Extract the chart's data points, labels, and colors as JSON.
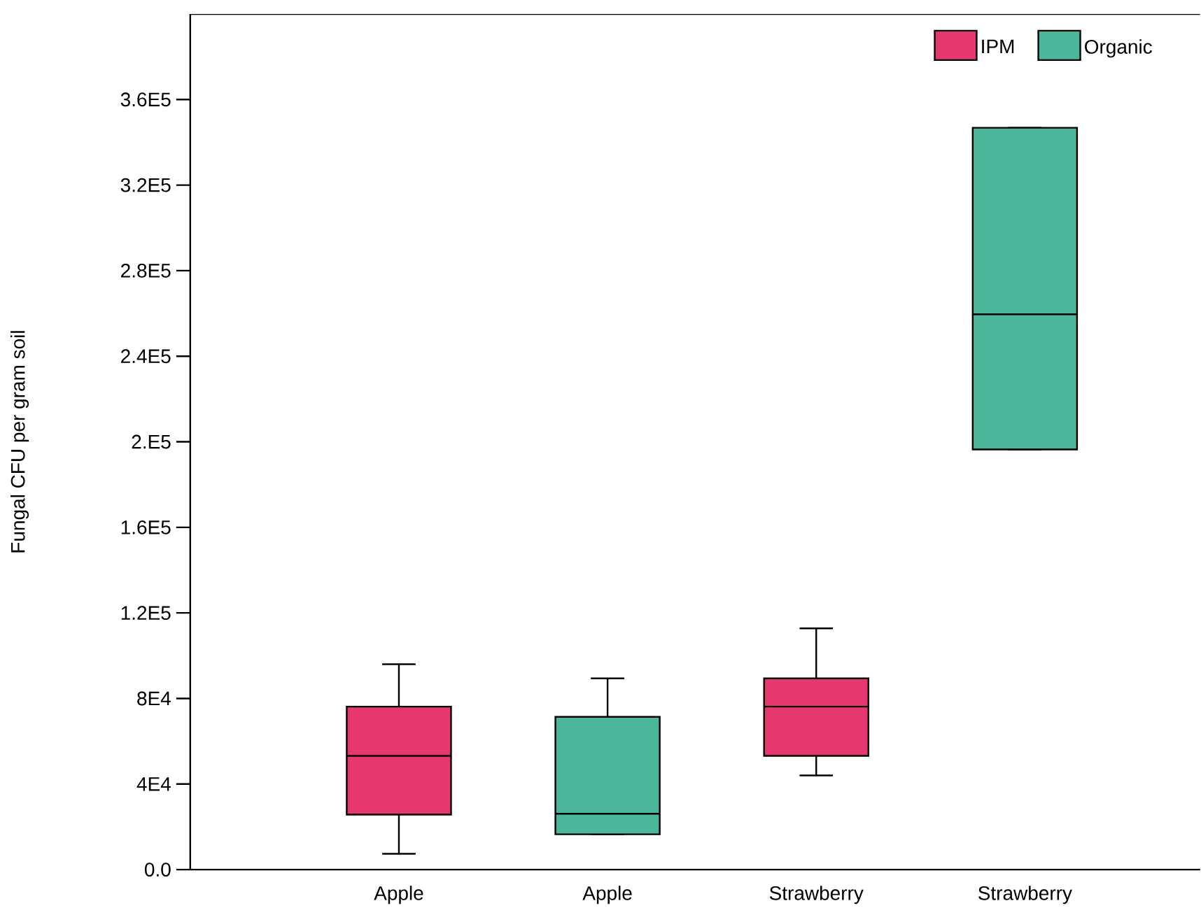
{
  "chart_data": {
    "type": "box",
    "ylabel": "Fungal CFU per gram soil",
    "categories": [
      "Apple",
      "Apple",
      "Strawberry",
      "Strawberry"
    ],
    "series": [
      {
        "name": "IPM",
        "color": "#e6386f",
        "boxes": [
          {
            "low": 7400,
            "q1": 25700,
            "median": 53200,
            "q3": 76200,
            "high": 96000
          },
          null,
          {
            "low": 44000,
            "q1": 53200,
            "median": 76200,
            "q3": 89400,
            "high": 112800
          },
          null
        ]
      },
      {
        "name": "Organic",
        "color": "#4bb69a",
        "boxes": [
          null,
          {
            "low": 16500,
            "q1": 16500,
            "median": 26100,
            "q3": 71400,
            "high": 89400
          },
          null,
          {
            "low": 196400,
            "q1": 196400,
            "median": 259600,
            "q3": 346800,
            "high": 346800
          }
        ]
      }
    ],
    "ylim": [
      0,
      400000
    ],
    "yticks": [
      {
        "value": 0,
        "label": "0.0"
      },
      {
        "value": 40000,
        "label": "4E4"
      },
      {
        "value": 80000,
        "label": "8E4"
      },
      {
        "value": 120000,
        "label": "1.2E5"
      },
      {
        "value": 160000,
        "label": "1.6E5"
      },
      {
        "value": 200000,
        "label": "2.E5"
      },
      {
        "value": 240000,
        "label": "2.4E5"
      },
      {
        "value": 280000,
        "label": "2.8E5"
      },
      {
        "value": 320000,
        "label": "3.2E5"
      },
      {
        "value": 360000,
        "label": "3.6E5"
      }
    ],
    "legend": "top right"
  }
}
